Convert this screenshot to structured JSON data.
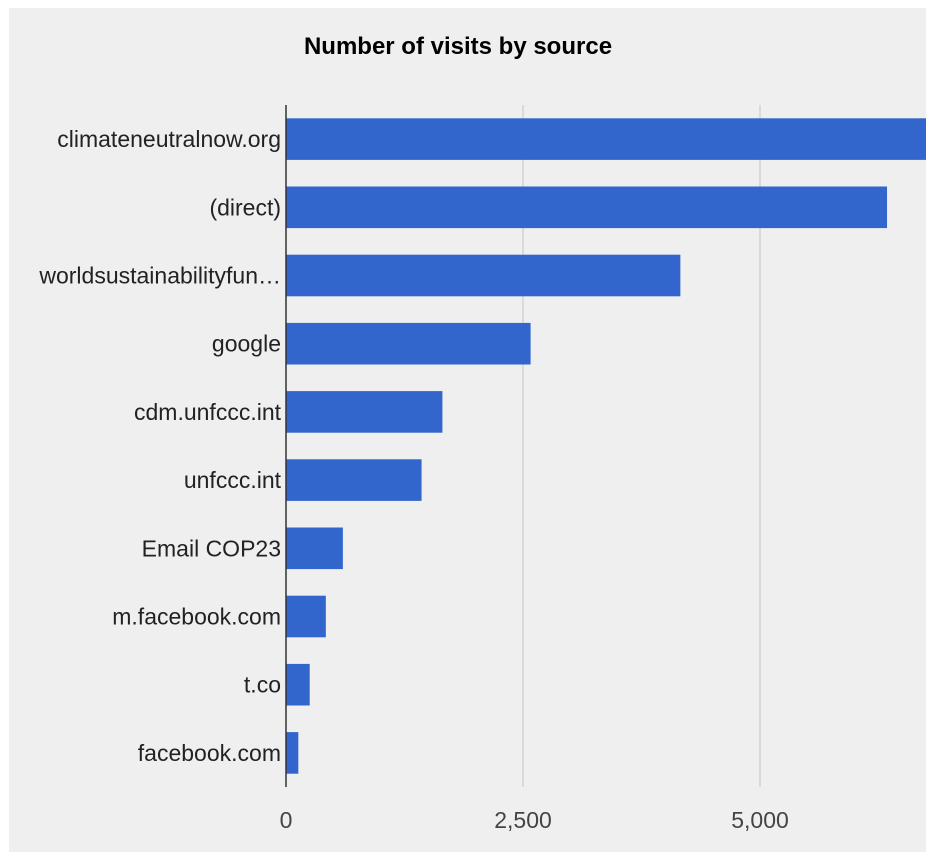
{
  "chart_data": {
    "type": "bar",
    "orientation": "horizontal",
    "title": "Number of visits by source",
    "xlabel": "",
    "ylabel": "",
    "categories": [
      "climateneutralnow.org",
      "(direct)",
      "worldsustainabilityfun…",
      "google",
      "cdm.unfccc.int",
      "unfccc.int",
      "Email COP23",
      "m.facebook.com",
      "t.co",
      "facebook.com"
    ],
    "series": [
      {
        "values": [
          6900,
          6340,
          4160,
          2580,
          1650,
          1430,
          600,
          420,
          250,
          130
        ]
      }
    ],
    "xlim": [
      0,
      6700
    ],
    "xticks": [
      0,
      2500,
      5000
    ],
    "xtick_labels": [
      "0",
      "2,500",
      "5,000"
    ],
    "grid": true,
    "legend": "none",
    "bar_color": "#3366cc",
    "grid_color": "#cccccc",
    "axis_color": "#333333"
  }
}
